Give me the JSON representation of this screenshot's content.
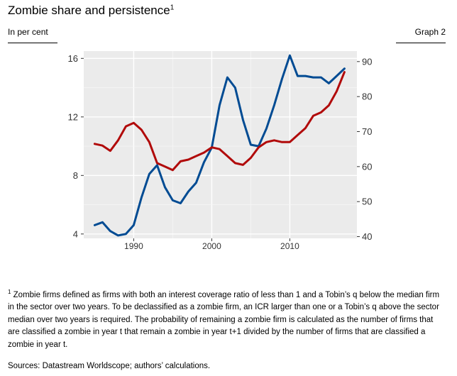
{
  "header": {
    "title": "Zombie share and persistence",
    "title_sup": "1",
    "subtitle": "In per cent",
    "graph_label": "Graph 2"
  },
  "footnote": {
    "marker": "1",
    "text": "Zombie firms defined as firms with both an interest coverage ratio of less than 1 and a Tobin’s q below the median firm in the sector over two years. To be declassified as a zombie firm, an ICR larger than one or a Tobin’s q above the sector median over two years is required. The probability of remaining a zombie firm is calculated as the number of firms that are classified a zombie in year t that remain a zombie in year t+1 divided by the number of firms that are classified a zombie in year t."
  },
  "sources": "Sources: Datastream Worldscope; authors’ calculations.",
  "chart_data": {
    "type": "line",
    "x": [
      1985,
      1986,
      1987,
      1988,
      1989,
      1990,
      1991,
      1992,
      1993,
      1994,
      1995,
      1996,
      1997,
      1998,
      1999,
      2000,
      2001,
      2002,
      2003,
      2004,
      2005,
      2006,
      2007,
      2008,
      2009,
      2010,
      2011,
      2012,
      2013,
      2014,
      2015,
      2016,
      2017
    ],
    "xticks": [
      1990,
      2000,
      2010
    ],
    "xlim": [
      1983.6,
      2018.6
    ],
    "y_left": {
      "ticks": [
        4,
        8,
        12,
        16
      ],
      "range": [
        3.7,
        16.5
      ]
    },
    "y_right": {
      "ticks": [
        40,
        50,
        60,
        70,
        80,
        90
      ],
      "range": [
        39.5,
        93.0
      ]
    },
    "grid": true,
    "series": [
      {
        "axis": "left",
        "color": "#004b93",
        "values": [
          4.6,
          4.8,
          4.2,
          3.9,
          4.0,
          4.6,
          6.5,
          8.1,
          8.7,
          7.2,
          6.3,
          6.1,
          6.9,
          7.5,
          8.9,
          9.9,
          12.8,
          14.7,
          14.0,
          11.8,
          10.1,
          10.0,
          11.2,
          12.8,
          14.6,
          16.2,
          14.8,
          14.8,
          14.7,
          14.7,
          14.3,
          14.8,
          15.3
        ]
      },
      {
        "axis": "right",
        "color": "#b10a0a",
        "values": [
          66.5,
          66.0,
          64.5,
          67.5,
          71.5,
          72.5,
          70.5,
          67.0,
          61.0,
          60.0,
          59.0,
          61.5,
          62.0,
          63.0,
          64.0,
          65.5,
          65.0,
          63.0,
          61.0,
          60.5,
          62.5,
          65.5,
          67.0,
          67.5,
          67.0,
          67.0,
          69.0,
          71.0,
          74.5,
          75.5,
          77.5,
          81.5,
          87.0
        ]
      }
    ]
  }
}
